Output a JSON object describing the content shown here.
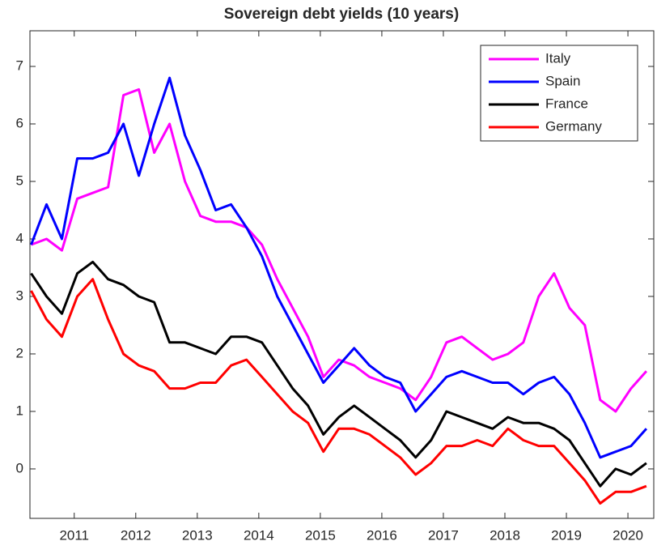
{
  "chart_data": {
    "type": "line",
    "title": "Sovereign debt yields (10 years)",
    "x": [
      2010.3,
      2010.55,
      2010.8,
      2011.05,
      2011.3,
      2011.55,
      2011.8,
      2012.05,
      2012.3,
      2012.55,
      2012.8,
      2013.05,
      2013.3,
      2013.55,
      2013.8,
      2014.05,
      2014.3,
      2014.55,
      2014.8,
      2015.05,
      2015.3,
      2015.55,
      2015.8,
      2016.05,
      2016.3,
      2016.55,
      2016.8,
      2017.05,
      2017.3,
      2017.55,
      2017.8,
      2018.05,
      2018.3,
      2018.55,
      2018.8,
      2019.05,
      2019.3,
      2019.55,
      2019.8,
      2020.05,
      2020.3
    ],
    "series": [
      {
        "name": "Italy",
        "color": "#ff00ff",
        "values": [
          3.9,
          4.0,
          3.8,
          4.7,
          4.8,
          4.9,
          6.5,
          6.6,
          5.5,
          6.0,
          5.0,
          4.4,
          4.3,
          4.3,
          4.2,
          3.9,
          3.3,
          2.8,
          2.3,
          1.6,
          1.9,
          1.8,
          1.6,
          1.5,
          1.4,
          1.2,
          1.6,
          2.2,
          2.3,
          2.1,
          1.9,
          2.0,
          2.2,
          3.0,
          3.4,
          2.8,
          2.5,
          1.2,
          1.0,
          1.4,
          1.7
        ]
      },
      {
        "name": "Spain",
        "color": "#0000ff",
        "values": [
          3.9,
          4.6,
          4.0,
          5.4,
          5.4,
          5.5,
          6.0,
          5.1,
          6.0,
          6.8,
          5.8,
          5.2,
          4.5,
          4.6,
          4.2,
          3.7,
          3.0,
          2.5,
          2.0,
          1.5,
          1.8,
          2.1,
          1.8,
          1.6,
          1.5,
          1.0,
          1.3,
          1.6,
          1.7,
          1.6,
          1.5,
          1.5,
          1.3,
          1.5,
          1.6,
          1.3,
          0.8,
          0.2,
          0.3,
          0.4,
          0.7
        ]
      },
      {
        "name": "France",
        "color": "#000000",
        "values": [
          3.4,
          3.0,
          2.7,
          3.4,
          3.6,
          3.3,
          3.2,
          3.0,
          2.9,
          2.2,
          2.2,
          2.1,
          2.0,
          2.3,
          2.3,
          2.2,
          1.8,
          1.4,
          1.1,
          0.6,
          0.9,
          1.1,
          0.9,
          0.7,
          0.5,
          0.2,
          0.5,
          1.0,
          0.9,
          0.8,
          0.7,
          0.9,
          0.8,
          0.8,
          0.7,
          0.5,
          0.1,
          -0.3,
          0.0,
          -0.1,
          0.1
        ]
      },
      {
        "name": "Germany",
        "color": "#ff0000",
        "values": [
          3.1,
          2.6,
          2.3,
          3.0,
          3.3,
          2.6,
          2.0,
          1.8,
          1.7,
          1.4,
          1.4,
          1.5,
          1.5,
          1.8,
          1.9,
          1.6,
          1.3,
          1.0,
          0.8,
          0.3,
          0.7,
          0.7,
          0.6,
          0.4,
          0.2,
          -0.1,
          0.1,
          0.4,
          0.4,
          0.5,
          0.4,
          0.7,
          0.5,
          0.4,
          0.4,
          0.1,
          -0.2,
          -0.6,
          -0.4,
          -0.4,
          -0.3
        ]
      }
    ],
    "xlim": [
      2010.28,
      2020.42
    ],
    "xticks": [
      2011,
      2012,
      2013,
      2014,
      2015,
      2016,
      2017,
      2018,
      2019,
      2020
    ],
    "ylim": [
      -0.86,
      7.62
    ],
    "yticks": [
      0,
      1,
      2,
      3,
      4,
      5,
      6,
      7
    ],
    "legend": "upper right",
    "grid": false
  }
}
